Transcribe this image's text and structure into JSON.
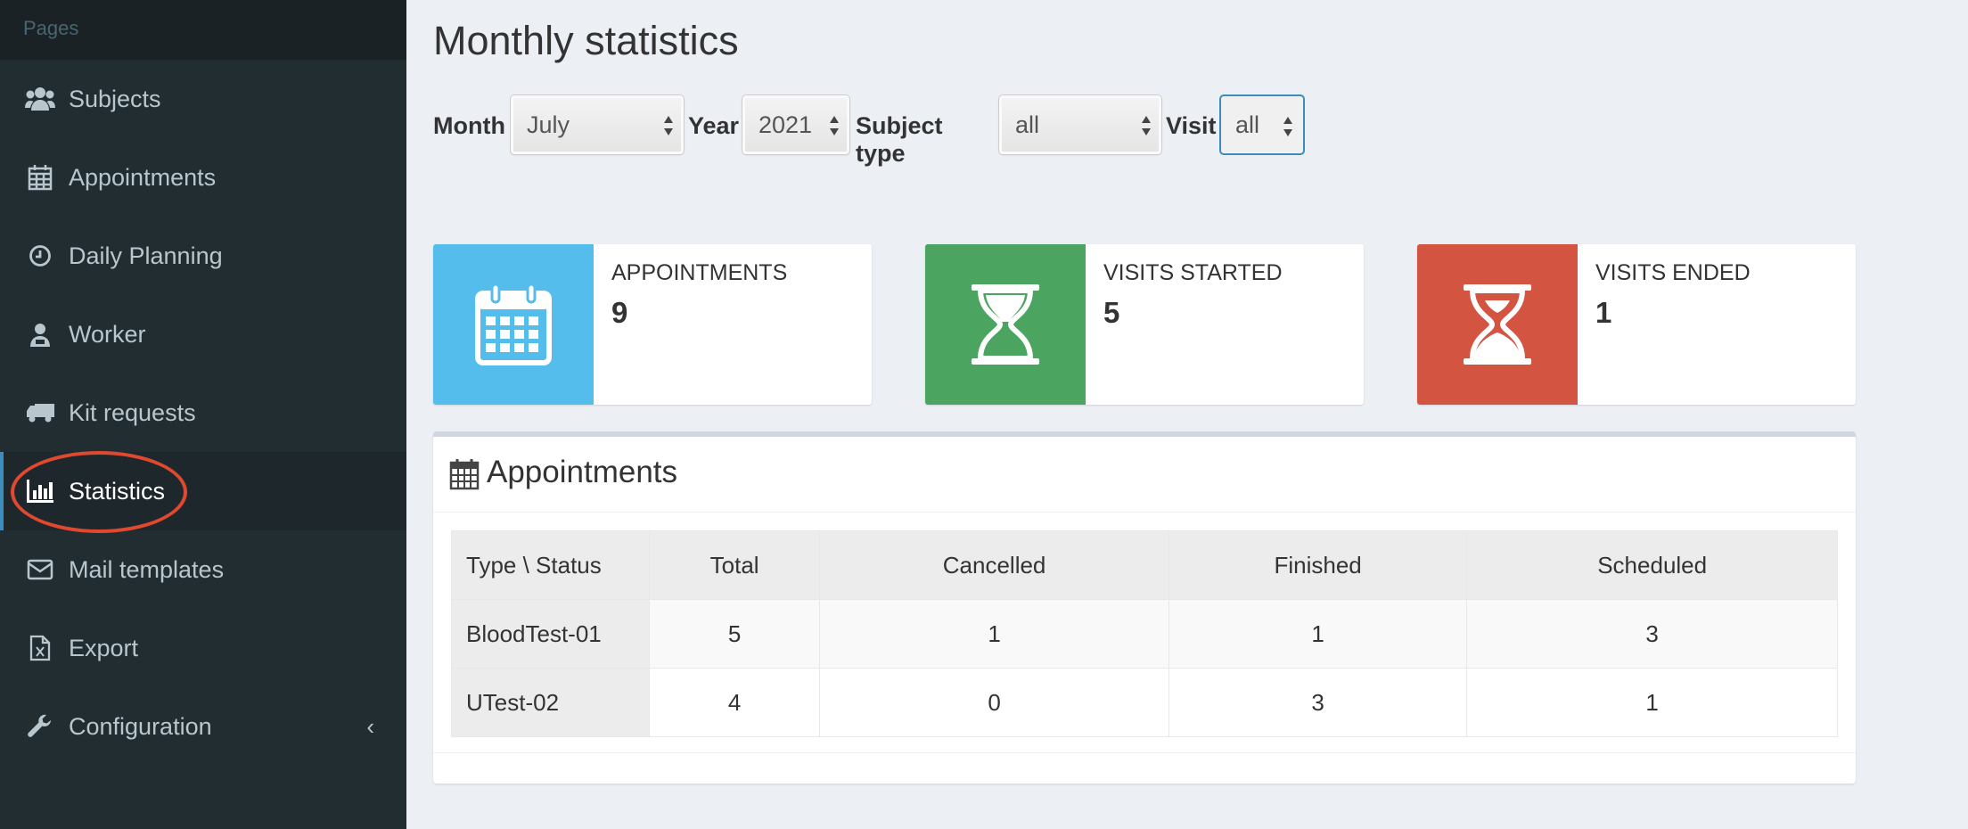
{
  "sidebar": {
    "header": "Pages",
    "items": [
      {
        "label": "Subjects",
        "icon": "users-icon"
      },
      {
        "label": "Appointments",
        "icon": "calendar-icon"
      },
      {
        "label": "Daily Planning",
        "icon": "clock-icon"
      },
      {
        "label": "Worker",
        "icon": "user-md-icon"
      },
      {
        "label": "Kit requests",
        "icon": "truck-icon"
      },
      {
        "label": "Statistics",
        "icon": "bar-chart-icon",
        "active": true
      },
      {
        "label": "Mail templates",
        "icon": "envelope-icon"
      },
      {
        "label": "Export",
        "icon": "file-excel-icon"
      },
      {
        "label": "Configuration",
        "icon": "wrench-icon",
        "chevron": "‹"
      }
    ]
  },
  "page_title": "Monthly statistics",
  "filters": {
    "month_label": "Month",
    "month_value": "July",
    "year_label": "Year",
    "year_value": "2021",
    "subject_type_label": "Subject type",
    "subject_type_value": "all",
    "visit_label": "Visit",
    "visit_value": "all"
  },
  "info_boxes": [
    {
      "label": "APPOINTMENTS",
      "value": "9",
      "color": "#55bdeb",
      "icon": "calendar-icon"
    },
    {
      "label": "VISITS STARTED",
      "value": "5",
      "color": "#4ba45f",
      "icon": "hourglass-start-icon"
    },
    {
      "label": "VISITS ENDED",
      "value": "1",
      "color": "#d25441",
      "icon": "hourglass-end-icon"
    }
  ],
  "panel": {
    "title": "Appointments",
    "table": {
      "headers": [
        "Type \\ Status",
        "Total",
        "Cancelled",
        "Finished",
        "Scheduled"
      ],
      "rows": [
        [
          "BloodTest-01",
          "5",
          "1",
          "1",
          "3"
        ],
        [
          "UTest-02",
          "4",
          "0",
          "3",
          "1"
        ]
      ]
    }
  },
  "colors": {
    "sidebar_bg": "#222d32",
    "sidebar_active_accent": "#3c8dbc",
    "highlight_ring": "#e0492f",
    "page_bg": "#ecf0f5"
  }
}
